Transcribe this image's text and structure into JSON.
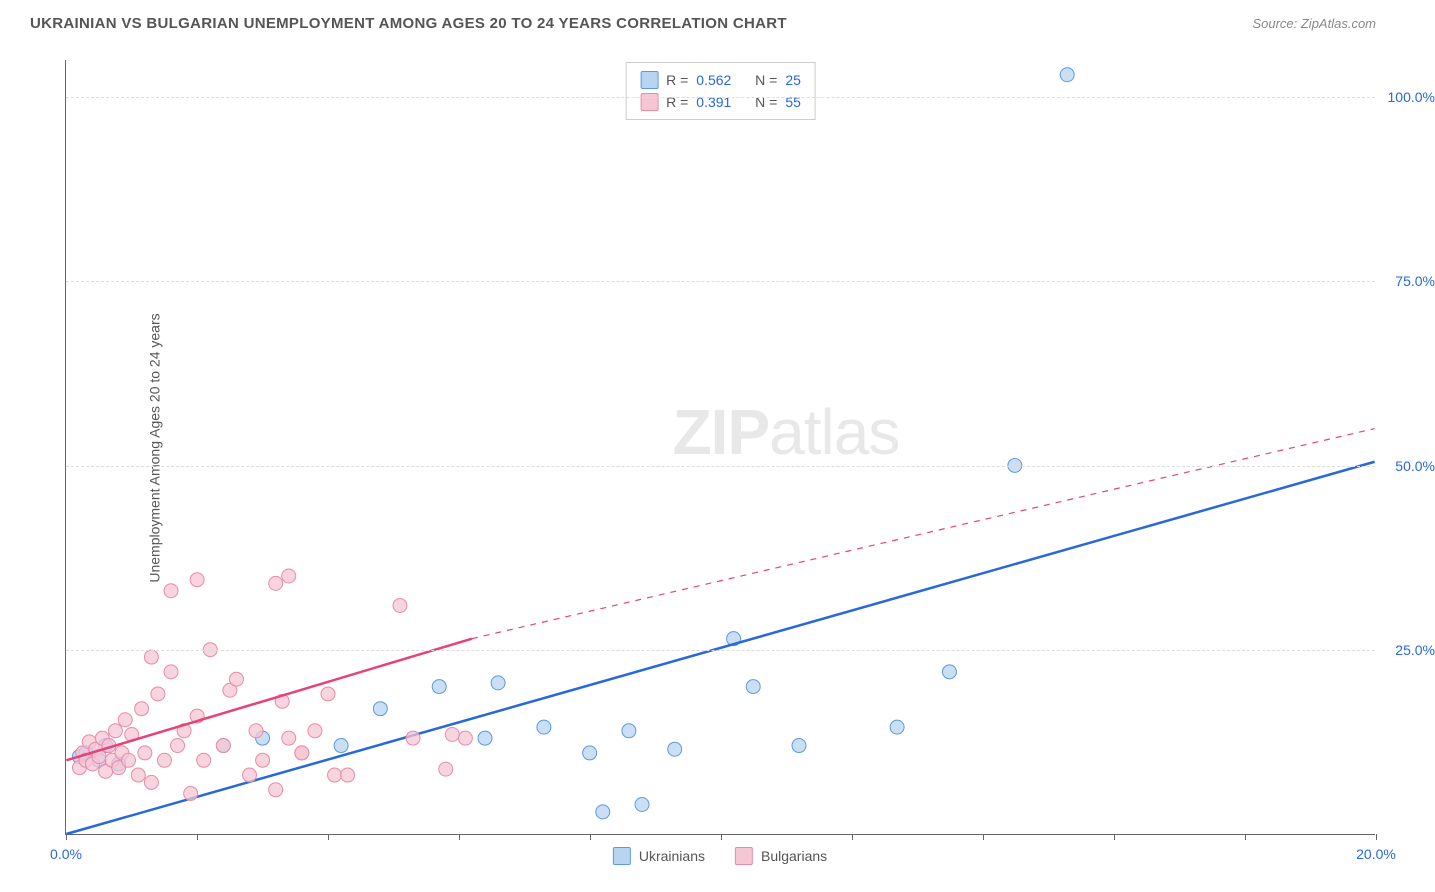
{
  "header": {
    "title": "UKRAINIAN VS BULGARIAN UNEMPLOYMENT AMONG AGES 20 TO 24 YEARS CORRELATION CHART",
    "source": "Source: ZipAtlas.com"
  },
  "chart": {
    "type": "scatter",
    "ylabel": "Unemployment Among Ages 20 to 24 years",
    "watermark_bold": "ZIP",
    "watermark_light": "atlas",
    "xlim": [
      0,
      20
    ],
    "ylim": [
      0,
      105
    ],
    "y_ticks": [
      {
        "value": 25,
        "label": "25.0%"
      },
      {
        "value": 50,
        "label": "50.0%"
      },
      {
        "value": 75,
        "label": "75.0%"
      },
      {
        "value": 100,
        "label": "100.0%"
      }
    ],
    "x_ticks": [
      0,
      2,
      4,
      6,
      8,
      10,
      12,
      14,
      16,
      18,
      20
    ],
    "x_tick_labels": [
      {
        "value": 0,
        "label": "0.0%",
        "color": "#2868d8"
      },
      {
        "value": 20,
        "label": "20.0%",
        "color": "#2868d8"
      }
    ],
    "y_tick_color": "#2868d8",
    "grid_color": "#dddddd",
    "background_color": "#ffffff",
    "stats": [
      {
        "swatch_fill": "#b8d4f0",
        "swatch_border": "#5a9ae0",
        "r_label": "R =",
        "r_value": "0.562",
        "n_label": "N =",
        "n_value": "25"
      },
      {
        "swatch_fill": "#f5c6d4",
        "swatch_border": "#e88ba8",
        "r_label": "R =",
        "r_value": "0.391",
        "n_label": "N =",
        "n_value": "55"
      }
    ],
    "legend": [
      {
        "swatch_fill": "#b8d4f0",
        "swatch_border": "#5a9ae0",
        "label": "Ukrainians"
      },
      {
        "swatch_fill": "#f5c6d4",
        "swatch_border": "#e88ba8",
        "label": "Bulgarians"
      }
    ],
    "series": [
      {
        "name": "ukrainians",
        "marker_fill": "#b8d4f0",
        "marker_border": "#5a9ae0",
        "marker_opacity": 0.75,
        "marker_radius": 7,
        "line_color": "#2868d8",
        "line_width": 2.5,
        "trend_solid": {
          "x1": 0,
          "y1": 0,
          "x2": 20,
          "y2": 50.5
        },
        "points": [
          [
            0.2,
            10.5
          ],
          [
            0.3,
            11
          ],
          [
            0.5,
            10
          ],
          [
            0.6,
            12
          ],
          [
            0.8,
            9.5
          ],
          [
            2.4,
            12
          ],
          [
            3.0,
            13
          ],
          [
            4.2,
            12
          ],
          [
            4.8,
            17
          ],
          [
            5.7,
            20
          ],
          [
            6.4,
            13
          ],
          [
            6.6,
            20.5
          ],
          [
            7.3,
            14.5
          ],
          [
            8.0,
            11
          ],
          [
            8.2,
            3
          ],
          [
            8.6,
            14
          ],
          [
            8.8,
            4
          ],
          [
            9.3,
            11.5
          ],
          [
            10.2,
            26.5
          ],
          [
            10.5,
            20
          ],
          [
            11.2,
            12
          ],
          [
            12.7,
            14.5
          ],
          [
            13.5,
            22
          ],
          [
            14.5,
            50
          ],
          [
            15.3,
            103
          ]
        ]
      },
      {
        "name": "bulgarians",
        "marker_fill": "#f5c6d4",
        "marker_border": "#e88ba8",
        "marker_opacity": 0.75,
        "marker_radius": 7,
        "line_color": "#e6437a",
        "line_width": 2.5,
        "trend_solid": {
          "x1": 0,
          "y1": 10,
          "x2": 6.2,
          "y2": 26.5
        },
        "trend_dashed": {
          "x1": 6.2,
          "y1": 26.5,
          "x2": 20,
          "y2": 55
        },
        "points": [
          [
            0.2,
            9
          ],
          [
            0.25,
            11
          ],
          [
            0.3,
            10
          ],
          [
            0.35,
            12.5
          ],
          [
            0.4,
            9.5
          ],
          [
            0.45,
            11.5
          ],
          [
            0.5,
            10.5
          ],
          [
            0.55,
            13
          ],
          [
            0.6,
            8.5
          ],
          [
            0.65,
            12
          ],
          [
            0.7,
            10
          ],
          [
            0.75,
            14
          ],
          [
            0.8,
            9
          ],
          [
            0.85,
            11
          ],
          [
            0.9,
            15.5
          ],
          [
            0.95,
            10
          ],
          [
            1.0,
            13.5
          ],
          [
            1.1,
            8
          ],
          [
            1.15,
            17
          ],
          [
            1.2,
            11
          ],
          [
            1.3,
            7
          ],
          [
            1.4,
            19
          ],
          [
            1.5,
            10
          ],
          [
            1.6,
            22
          ],
          [
            1.7,
            12
          ],
          [
            1.8,
            14
          ],
          [
            1.9,
            5.5
          ],
          [
            2.0,
            16
          ],
          [
            2.1,
            10
          ],
          [
            2.2,
            25
          ],
          [
            2.4,
            12
          ],
          [
            2.5,
            19.5
          ],
          [
            2.6,
            21
          ],
          [
            2.8,
            8
          ],
          [
            2.9,
            14
          ],
          [
            3.0,
            10
          ],
          [
            3.2,
            6
          ],
          [
            3.3,
            18
          ],
          [
            3.4,
            13
          ],
          [
            3.6,
            11
          ],
          [
            3.8,
            14
          ],
          [
            4.0,
            19
          ],
          [
            4.1,
            8
          ],
          [
            1.6,
            33
          ],
          [
            3.2,
            34
          ],
          [
            2.0,
            34.5
          ],
          [
            1.3,
            24
          ],
          [
            3.4,
            35
          ],
          [
            5.1,
            31
          ],
          [
            3.6,
            11
          ],
          [
            4.3,
            8
          ],
          [
            5.3,
            13
          ],
          [
            5.8,
            8.8
          ],
          [
            6.1,
            13
          ],
          [
            5.9,
            13.5
          ]
        ]
      }
    ]
  }
}
